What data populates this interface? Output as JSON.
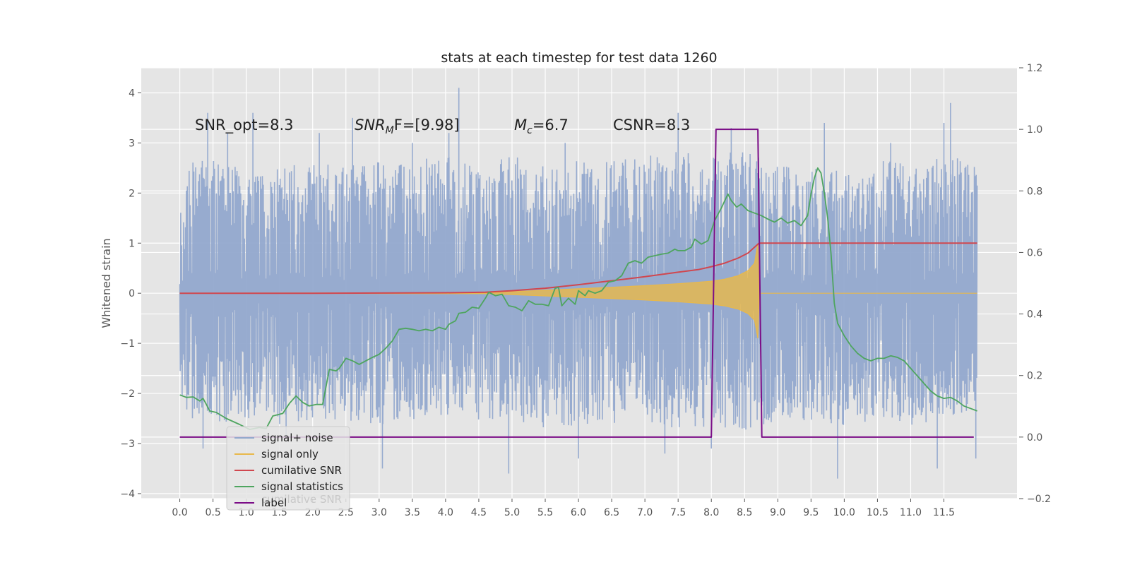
{
  "chart_data": {
    "type": "line",
    "title": "stats at each timestep for test data 1260",
    "ylabel": "Whitened strain",
    "y2label": "",
    "xlim": [
      -0.58,
      12.6
    ],
    "ylim": [
      -4.1,
      4.5
    ],
    "y2lim": [
      -0.2,
      1.2
    ],
    "x_ticks": [
      "0.0",
      "0.5",
      "1.0",
      "1.5",
      "2.0",
      "2.5",
      "3.0",
      "3.5",
      "4.0",
      "4.5",
      "5.0",
      "5.5",
      "6.0",
      "6.5",
      "7.0",
      "7.5",
      "8.0",
      "8.5",
      "9.0",
      "9.5",
      "10.0",
      "10.5",
      "11.0",
      "11.5"
    ],
    "y_ticks": [
      "−4",
      "−3",
      "−2",
      "−1",
      "0",
      "1",
      "2",
      "3",
      "4"
    ],
    "y2_ticks": [
      "−0.2",
      "0.0",
      "0.2",
      "0.4",
      "0.6",
      "0.8",
      "1.0",
      "1.2"
    ],
    "grid": true,
    "legend_placement": "lower-left",
    "annotations": {
      "snr_opt": "SNR_opt=8.3",
      "snr_mf_base": "SNR",
      "snr_mf_sub": "M",
      "snr_mf_rest": "F=[9.98]",
      "mc_base": "M",
      "mc_sub": "c",
      "mc_rest": "=6.7",
      "csnr": "CSNR=8.3"
    },
    "legend_ghost_text": "cumilative SNR",
    "series": [
      {
        "name": "signal+ noise",
        "axis": "left",
        "color": "#92a8cd",
        "envelope_upper": [
          [
            0.0,
            2.3
          ],
          [
            0.5,
            2.5
          ],
          [
            1.0,
            2.2
          ],
          [
            1.5,
            2.3
          ],
          [
            2.0,
            2.4
          ],
          [
            2.5,
            2.3
          ],
          [
            3.0,
            2.4
          ],
          [
            3.5,
            2.4
          ],
          [
            4.0,
            2.5
          ],
          [
            4.5,
            2.3
          ],
          [
            5.0,
            2.5
          ],
          [
            5.5,
            2.4
          ],
          [
            6.0,
            2.4
          ],
          [
            6.5,
            2.5
          ],
          [
            7.0,
            2.5
          ],
          [
            7.5,
            2.6
          ],
          [
            8.0,
            2.5
          ],
          [
            8.5,
            2.6
          ],
          [
            9.0,
            2.3
          ],
          [
            9.5,
            2.3
          ],
          [
            10.0,
            2.3
          ],
          [
            10.5,
            2.4
          ],
          [
            11.0,
            2.4
          ],
          [
            11.5,
            2.5
          ],
          [
            12.0,
            2.4
          ]
        ],
        "envelope_lower": [
          [
            0.0,
            -2.2
          ],
          [
            0.5,
            -2.4
          ],
          [
            1.0,
            -2.3
          ],
          [
            1.5,
            -2.4
          ],
          [
            2.0,
            -2.3
          ],
          [
            2.5,
            -2.3
          ],
          [
            3.0,
            -2.4
          ],
          [
            3.5,
            -2.3
          ],
          [
            4.0,
            -2.4
          ],
          [
            4.5,
            -2.3
          ],
          [
            5.0,
            -2.4
          ],
          [
            5.5,
            -2.5
          ],
          [
            6.0,
            -2.4
          ],
          [
            6.5,
            -2.4
          ],
          [
            7.0,
            -2.3
          ],
          [
            7.5,
            -2.5
          ],
          [
            8.0,
            -2.4
          ],
          [
            8.5,
            -2.5
          ],
          [
            9.0,
            -2.3
          ],
          [
            9.5,
            -2.4
          ],
          [
            10.0,
            -2.4
          ],
          [
            10.5,
            -2.3
          ],
          [
            11.0,
            -2.4
          ],
          [
            11.5,
            -2.3
          ],
          [
            12.0,
            -2.4
          ]
        ],
        "spikes": [
          [
            0.42,
            3.6
          ],
          [
            0.72,
            3.2
          ],
          [
            1.1,
            3.6
          ],
          [
            2.1,
            3.2
          ],
          [
            2.6,
            3.5
          ],
          [
            3.5,
            3.0
          ],
          [
            4.2,
            4.1
          ],
          [
            4.05,
            3.2
          ],
          [
            5.8,
            3.0
          ],
          [
            7.5,
            3.6
          ],
          [
            8.3,
            3.3
          ],
          [
            9.7,
            3.4
          ],
          [
            10.7,
            3.0
          ],
          [
            11.5,
            3.4
          ],
          [
            11.6,
            3.8
          ],
          [
            0.35,
            -3.1
          ],
          [
            1.6,
            -2.9
          ],
          [
            3.05,
            -3.5
          ],
          [
            4.95,
            -3.6
          ],
          [
            6.0,
            -3.3
          ],
          [
            7.3,
            -3.2
          ],
          [
            8.0,
            -3.1
          ],
          [
            9.9,
            -3.7
          ],
          [
            11.4,
            -3.5
          ],
          [
            11.98,
            -3.3
          ]
        ]
      },
      {
        "name": "signal only",
        "axis": "left",
        "color": "#e8b84b",
        "envelope": [
          [
            0.0,
            0.0
          ],
          [
            4.6,
            0.01
          ],
          [
            5.0,
            0.03
          ],
          [
            5.5,
            0.06
          ],
          [
            6.0,
            0.09
          ],
          [
            6.5,
            0.12
          ],
          [
            7.0,
            0.15
          ],
          [
            7.5,
            0.19
          ],
          [
            8.0,
            0.24
          ],
          [
            8.2,
            0.28
          ],
          [
            8.4,
            0.35
          ],
          [
            8.55,
            0.45
          ],
          [
            8.65,
            0.6
          ],
          [
            8.7,
            1.0
          ],
          [
            8.72,
            0.0
          ],
          [
            12.0,
            0.0
          ]
        ]
      },
      {
        "name": "cumilative SNR",
        "axis": "left",
        "color": "#d0474f",
        "values": [
          [
            0.0,
            0.0
          ],
          [
            2.0,
            0.0
          ],
          [
            4.0,
            0.01
          ],
          [
            4.6,
            0.02
          ],
          [
            5.0,
            0.05
          ],
          [
            5.5,
            0.1
          ],
          [
            6.0,
            0.17
          ],
          [
            6.5,
            0.25
          ],
          [
            7.0,
            0.33
          ],
          [
            7.5,
            0.42
          ],
          [
            7.8,
            0.47
          ],
          [
            8.0,
            0.53
          ],
          [
            8.2,
            0.6
          ],
          [
            8.4,
            0.7
          ],
          [
            8.55,
            0.8
          ],
          [
            8.7,
            0.98
          ],
          [
            8.72,
            1.0
          ],
          [
            12.0,
            1.0
          ]
        ]
      },
      {
        "name": "signal statistics",
        "axis": "left",
        "color": "#4ea55f",
        "values": [
          [
            0.0,
            -2.03
          ],
          [
            0.1,
            -2.08
          ],
          [
            0.2,
            -2.07
          ],
          [
            0.3,
            -2.15
          ],
          [
            0.35,
            -2.1
          ],
          [
            0.4,
            -2.22
          ],
          [
            0.45,
            -2.35
          ],
          [
            0.55,
            -2.38
          ],
          [
            0.7,
            -2.5
          ],
          [
            0.9,
            -2.62
          ],
          [
            1.05,
            -2.72
          ],
          [
            1.2,
            -2.68
          ],
          [
            1.3,
            -2.7
          ],
          [
            1.4,
            -2.45
          ],
          [
            1.55,
            -2.4
          ],
          [
            1.65,
            -2.2
          ],
          [
            1.75,
            -2.05
          ],
          [
            1.85,
            -2.18
          ],
          [
            1.95,
            -2.25
          ],
          [
            2.05,
            -2.22
          ],
          [
            2.15,
            -2.22
          ],
          [
            2.25,
            -1.52
          ],
          [
            2.35,
            -1.55
          ],
          [
            2.4,
            -1.5
          ],
          [
            2.5,
            -1.3
          ],
          [
            2.6,
            -1.35
          ],
          [
            2.7,
            -1.42
          ],
          [
            2.8,
            -1.35
          ],
          [
            2.9,
            -1.28
          ],
          [
            3.0,
            -1.22
          ],
          [
            3.1,
            -1.1
          ],
          [
            3.2,
            -0.95
          ],
          [
            3.3,
            -0.72
          ],
          [
            3.4,
            -0.7
          ],
          [
            3.5,
            -0.72
          ],
          [
            3.6,
            -0.75
          ],
          [
            3.7,
            -0.72
          ],
          [
            3.8,
            -0.75
          ],
          [
            3.9,
            -0.68
          ],
          [
            4.0,
            -0.72
          ],
          [
            4.05,
            -0.62
          ],
          [
            4.15,
            -0.55
          ],
          [
            4.2,
            -0.4
          ],
          [
            4.3,
            -0.38
          ],
          [
            4.4,
            -0.28
          ],
          [
            4.5,
            -0.3
          ],
          [
            4.6,
            -0.1
          ],
          [
            4.65,
            0.02
          ],
          [
            4.75,
            -0.05
          ],
          [
            4.85,
            -0.02
          ],
          [
            4.95,
            -0.25
          ],
          [
            5.05,
            -0.28
          ],
          [
            5.15,
            -0.35
          ],
          [
            5.25,
            -0.15
          ],
          [
            5.35,
            -0.22
          ],
          [
            5.45,
            -0.22
          ],
          [
            5.55,
            -0.25
          ],
          [
            5.65,
            0.1
          ],
          [
            5.7,
            0.12
          ],
          [
            5.75,
            -0.25
          ],
          [
            5.85,
            -0.1
          ],
          [
            5.95,
            -0.22
          ],
          [
            6.0,
            0.05
          ],
          [
            6.1,
            -0.05
          ],
          [
            6.15,
            0.05
          ],
          [
            6.25,
            0.0
          ],
          [
            6.35,
            0.05
          ],
          [
            6.45,
            0.22
          ],
          [
            6.55,
            0.25
          ],
          [
            6.65,
            0.35
          ],
          [
            6.75,
            0.6
          ],
          [
            6.85,
            0.65
          ],
          [
            6.95,
            0.6
          ],
          [
            7.05,
            0.72
          ],
          [
            7.15,
            0.75
          ],
          [
            7.25,
            0.78
          ],
          [
            7.35,
            0.8
          ],
          [
            7.45,
            0.88
          ],
          [
            7.5,
            0.85
          ],
          [
            7.6,
            0.85
          ],
          [
            7.7,
            0.92
          ],
          [
            7.75,
            1.08
          ],
          [
            7.85,
            0.98
          ],
          [
            7.95,
            1.05
          ],
          [
            8.05,
            1.45
          ],
          [
            8.15,
            1.7
          ],
          [
            8.25,
            1.98
          ],
          [
            8.3,
            1.85
          ],
          [
            8.38,
            1.72
          ],
          [
            8.45,
            1.78
          ],
          [
            8.55,
            1.65
          ],
          [
            8.65,
            1.6
          ],
          [
            8.75,
            1.55
          ],
          [
            8.85,
            1.48
          ],
          [
            8.95,
            1.42
          ],
          [
            9.05,
            1.5
          ],
          [
            9.15,
            1.4
          ],
          [
            9.25,
            1.45
          ],
          [
            9.35,
            1.35
          ],
          [
            9.45,
            1.55
          ],
          [
            9.5,
            1.98
          ],
          [
            9.55,
            2.3
          ],
          [
            9.6,
            2.5
          ],
          [
            9.65,
            2.4
          ],
          [
            9.7,
            2.0
          ],
          [
            9.75,
            1.5
          ],
          [
            9.8,
            0.8
          ],
          [
            9.85,
            -0.2
          ],
          [
            9.9,
            -0.6
          ],
          [
            10.0,
            -0.85
          ],
          [
            10.1,
            -1.05
          ],
          [
            10.2,
            -1.2
          ],
          [
            10.3,
            -1.3
          ],
          [
            10.4,
            -1.35
          ],
          [
            10.5,
            -1.3
          ],
          [
            10.6,
            -1.3
          ],
          [
            10.7,
            -1.25
          ],
          [
            10.8,
            -1.28
          ],
          [
            10.9,
            -1.35
          ],
          [
            11.0,
            -1.5
          ],
          [
            11.1,
            -1.65
          ],
          [
            11.2,
            -1.8
          ],
          [
            11.3,
            -1.95
          ],
          [
            11.4,
            -2.05
          ],
          [
            11.5,
            -2.1
          ],
          [
            11.6,
            -2.08
          ],
          [
            11.7,
            -2.15
          ],
          [
            11.8,
            -2.25
          ],
          [
            11.9,
            -2.3
          ],
          [
            12.0,
            -2.35
          ]
        ]
      },
      {
        "name": "label",
        "axis": "right",
        "color": "#7b0d87",
        "values": [
          [
            0.0,
            0.0
          ],
          [
            8.0,
            0.0
          ],
          [
            8.07,
            1.0
          ],
          [
            8.7,
            1.0
          ],
          [
            8.76,
            0.0
          ],
          [
            11.95,
            0.0
          ]
        ]
      }
    ]
  }
}
